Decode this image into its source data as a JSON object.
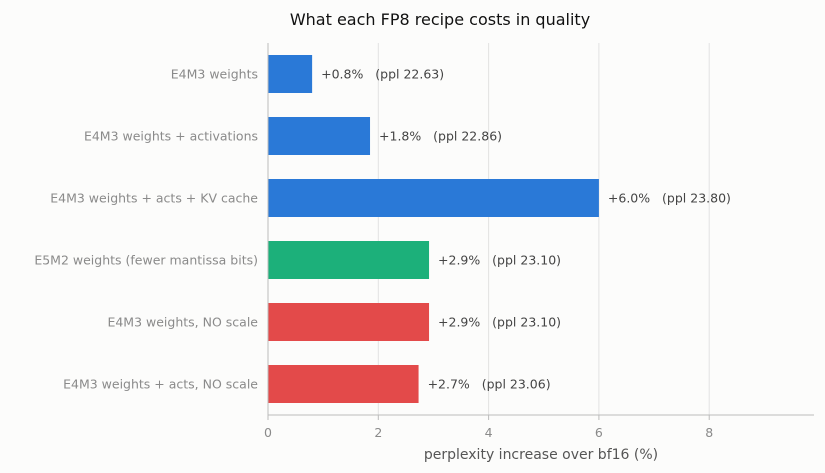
{
  "chart_data": {
    "type": "bar",
    "orientation": "horizontal",
    "title": "What each FP8 recipe costs in quality",
    "xlabel": "perplexity increase over bf16 (%)",
    "ylabel": "",
    "xlim": [
      0,
      9.9
    ],
    "xticks": [
      0,
      2,
      4,
      6,
      8
    ],
    "grid": "vertical",
    "categories": [
      "E4M3 weights",
      "E4M3 weights + activations",
      "E4M3 weights + acts + KV cache",
      "E5M2 weights (fewer mantissa bits)",
      "E4M3 weights, NO scale",
      "E4M3 weights + acts, NO scale"
    ],
    "values": [
      0.8,
      1.85,
      6.0,
      2.92,
      2.92,
      2.73
    ],
    "data_labels": [
      "+0.8%   (ppl 22.63)",
      "+1.8%   (ppl 22.86)",
      "+6.0%   (ppl 23.80)",
      "+2.9%   (ppl 23.10)",
      "+2.9%   (ppl 23.10)",
      "+2.7%   (ppl 23.06)"
    ],
    "bar_colors": [
      "#2a79d7",
      "#2a79d7",
      "#2a79d7",
      "#1cb07a",
      "#e34a4a",
      "#e34a4a"
    ]
  }
}
